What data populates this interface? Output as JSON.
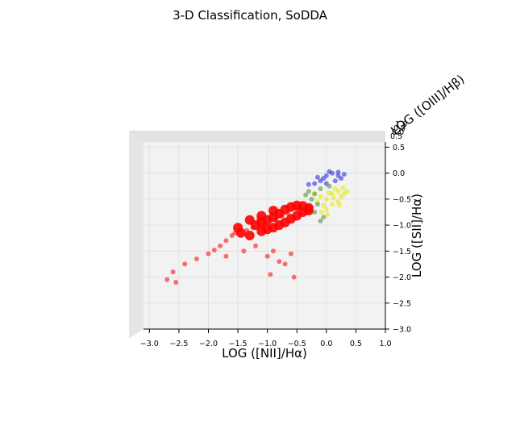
{
  "chart_data": {
    "type": "scatter",
    "title": "3-D Classification, SoDDA",
    "xlabel": "LOG ([NII]/Hα)",
    "ylabel": "LOG ([SII]/Hα)",
    "zlabel": "LOG ([OIII]/Hβ)",
    "x_ticks": [
      "−3.0",
      "−2.5",
      "−2.0",
      "−1.5",
      "−1.0",
      "−0.5",
      "0.0",
      "0.5",
      "1.0"
    ],
    "y_ticks": [
      "0.5",
      "0.0",
      "−0.5",
      "−1.0",
      "−1.5",
      "−2.0",
      "−2.5",
      "−3.0"
    ],
    "xlim": [
      -3.1,
      1.0
    ],
    "ylim": [
      -3.0,
      0.6
    ],
    "grid": true,
    "view": "top-down projection of 3-D scatter",
    "series": [
      {
        "color": "#ff0000",
        "points": [
          [
            -0.7,
            -0.7
          ],
          [
            -0.6,
            -0.65
          ],
          [
            -0.5,
            -0.62
          ],
          [
            -0.4,
            -0.63
          ],
          [
            -0.3,
            -0.67
          ],
          [
            -0.8,
            -0.78
          ],
          [
            -0.9,
            -0.85
          ],
          [
            -1.0,
            -0.9
          ],
          [
            -1.1,
            -0.95
          ],
          [
            -1.2,
            -1.0
          ],
          [
            -0.9,
            -0.72
          ],
          [
            -1.1,
            -0.82
          ],
          [
            -1.3,
            -0.9
          ],
          [
            -1.5,
            -1.05
          ],
          [
            -1.45,
            -1.15
          ],
          [
            -1.3,
            -1.2
          ],
          [
            -1.1,
            -1.12
          ],
          [
            -0.9,
            -1.05
          ],
          [
            -0.7,
            -0.95
          ],
          [
            -0.5,
            -0.82
          ],
          [
            -0.4,
            -0.75
          ],
          [
            -0.3,
            -0.72
          ],
          [
            -0.6,
            -0.88
          ],
          [
            -0.8,
            -1.0
          ],
          [
            -1.0,
            -1.08
          ],
          [
            -1.6,
            -1.2
          ],
          [
            -1.7,
            -1.3
          ],
          [
            -1.8,
            -1.4
          ],
          [
            -1.9,
            -1.48
          ],
          [
            -2.0,
            -1.55
          ],
          [
            -2.2,
            -1.65
          ],
          [
            -2.4,
            -1.75
          ],
          [
            -2.6,
            -1.9
          ],
          [
            -1.2,
            -1.4
          ],
          [
            -1.0,
            -1.6
          ],
          [
            -0.8,
            -1.7
          ],
          [
            -0.7,
            -1.75
          ],
          [
            -0.6,
            -1.55
          ],
          [
            -0.9,
            -1.5
          ],
          [
            -1.4,
            -1.5
          ],
          [
            -0.5,
            -0.7
          ],
          [
            -0.45,
            -0.66
          ],
          [
            -0.65,
            -0.78
          ],
          [
            -0.75,
            -0.82
          ],
          [
            -0.85,
            -0.9
          ],
          [
            -1.05,
            -0.98
          ],
          [
            -1.25,
            -1.05
          ],
          [
            -1.35,
            -1.1
          ],
          [
            -1.55,
            -1.15
          ],
          [
            -1.15,
            -0.88
          ],
          [
            -2.7,
            -2.05
          ],
          [
            -2.55,
            -2.1
          ],
          [
            -1.7,
            -1.6
          ],
          [
            -0.55,
            -2.0
          ],
          [
            -0.95,
            -1.95
          ]
        ]
      },
      {
        "color": "#e8e800",
        "points": [
          [
            0.0,
            -0.5
          ],
          [
            0.1,
            -0.4
          ],
          [
            0.2,
            -0.35
          ],
          [
            0.1,
            -0.6
          ],
          [
            -0.1,
            -0.45
          ],
          [
            0.2,
            -0.55
          ],
          [
            0.0,
            -0.7
          ],
          [
            -0.05,
            -0.62
          ],
          [
            0.15,
            -0.3
          ],
          [
            0.25,
            -0.45
          ],
          [
            0.3,
            -0.4
          ],
          [
            -0.15,
            -0.55
          ],
          [
            0.05,
            -0.38
          ],
          [
            0.12,
            -0.48
          ],
          [
            0.22,
            -0.62
          ],
          [
            -0.08,
            -0.75
          ],
          [
            0.02,
            -0.8
          ],
          [
            0.28,
            -0.28
          ],
          [
            0.35,
            -0.35
          ],
          [
            -0.2,
            -0.4
          ]
        ]
      },
      {
        "color": "#2222dd",
        "points": [
          [
            0.0,
            -0.05
          ],
          [
            0.1,
            0.0
          ],
          [
            0.2,
            -0.05
          ],
          [
            -0.1,
            -0.15
          ],
          [
            0.0,
            -0.2
          ],
          [
            0.25,
            -0.1
          ],
          [
            -0.2,
            -0.2
          ],
          [
            -0.05,
            -0.1
          ],
          [
            0.15,
            -0.15
          ],
          [
            0.3,
            -0.02
          ],
          [
            -0.3,
            -0.22
          ],
          [
            0.05,
            0.03
          ],
          [
            -0.15,
            -0.08
          ],
          [
            0.2,
            0.02
          ]
        ]
      },
      {
        "color": "#4a8a2a",
        "points": [
          [
            -0.3,
            -0.35
          ],
          [
            -0.2,
            -0.4
          ],
          [
            -0.1,
            -0.3
          ],
          [
            -0.25,
            -0.5
          ],
          [
            -0.15,
            -0.6
          ],
          [
            -0.05,
            -0.85
          ],
          [
            -0.2,
            -0.75
          ],
          [
            0.05,
            -0.25
          ],
          [
            -0.35,
            -0.42
          ],
          [
            -0.1,
            -0.92
          ]
        ]
      }
    ]
  }
}
